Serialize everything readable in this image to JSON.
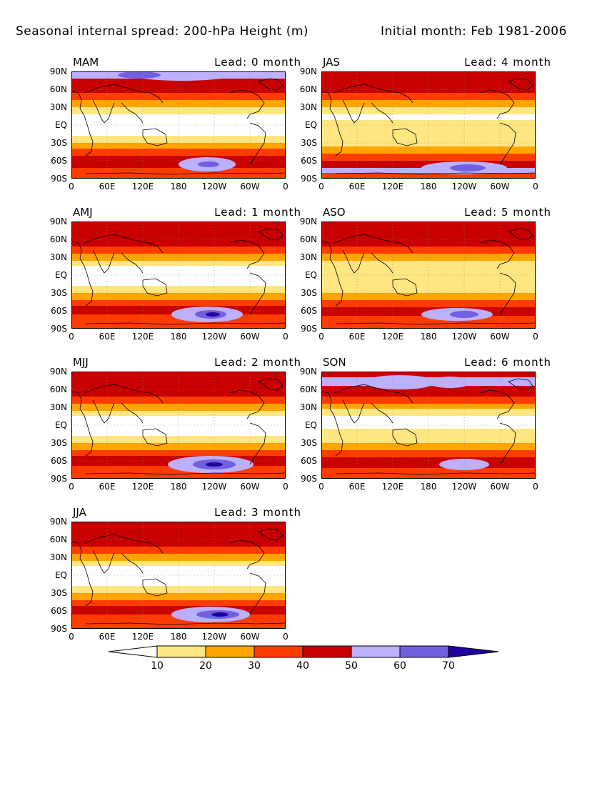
{
  "header": {
    "title_left": "Seasonal internal spread: 200-hPa Height (m)",
    "title_right": "Initial month: Feb 1981-2006"
  },
  "axes": {
    "lat_labels": [
      "90N",
      "60N",
      "30N",
      "EQ",
      "30S",
      "60S",
      "90S"
    ],
    "lon_labels": [
      "0",
      "60E",
      "120E",
      "180",
      "120W",
      "60W",
      "0"
    ]
  },
  "panels": [
    {
      "season": "MAM",
      "lead": "Lead: 0 month"
    },
    {
      "season": "JAS",
      "lead": "Lead: 4 month"
    },
    {
      "season": "AMJ",
      "lead": "Lead: 1 month"
    },
    {
      "season": "ASO",
      "lead": "Lead: 5 month"
    },
    {
      "season": "MJJ",
      "lead": "Lead: 2 month"
    },
    {
      "season": "SON",
      "lead": "Lead: 6 month"
    },
    {
      "season": "JJA",
      "lead": "Lead: 3 month"
    }
  ],
  "colorbar": {
    "labels": [
      "10",
      "20",
      "30",
      "40",
      "50",
      "60",
      "70"
    ],
    "colors": [
      "#ffffff",
      "#ffe680",
      "#ffa500",
      "#ff3c00",
      "#c80000",
      "#bcb0ff",
      "#7060e0",
      "#2000a0"
    ]
  }
}
